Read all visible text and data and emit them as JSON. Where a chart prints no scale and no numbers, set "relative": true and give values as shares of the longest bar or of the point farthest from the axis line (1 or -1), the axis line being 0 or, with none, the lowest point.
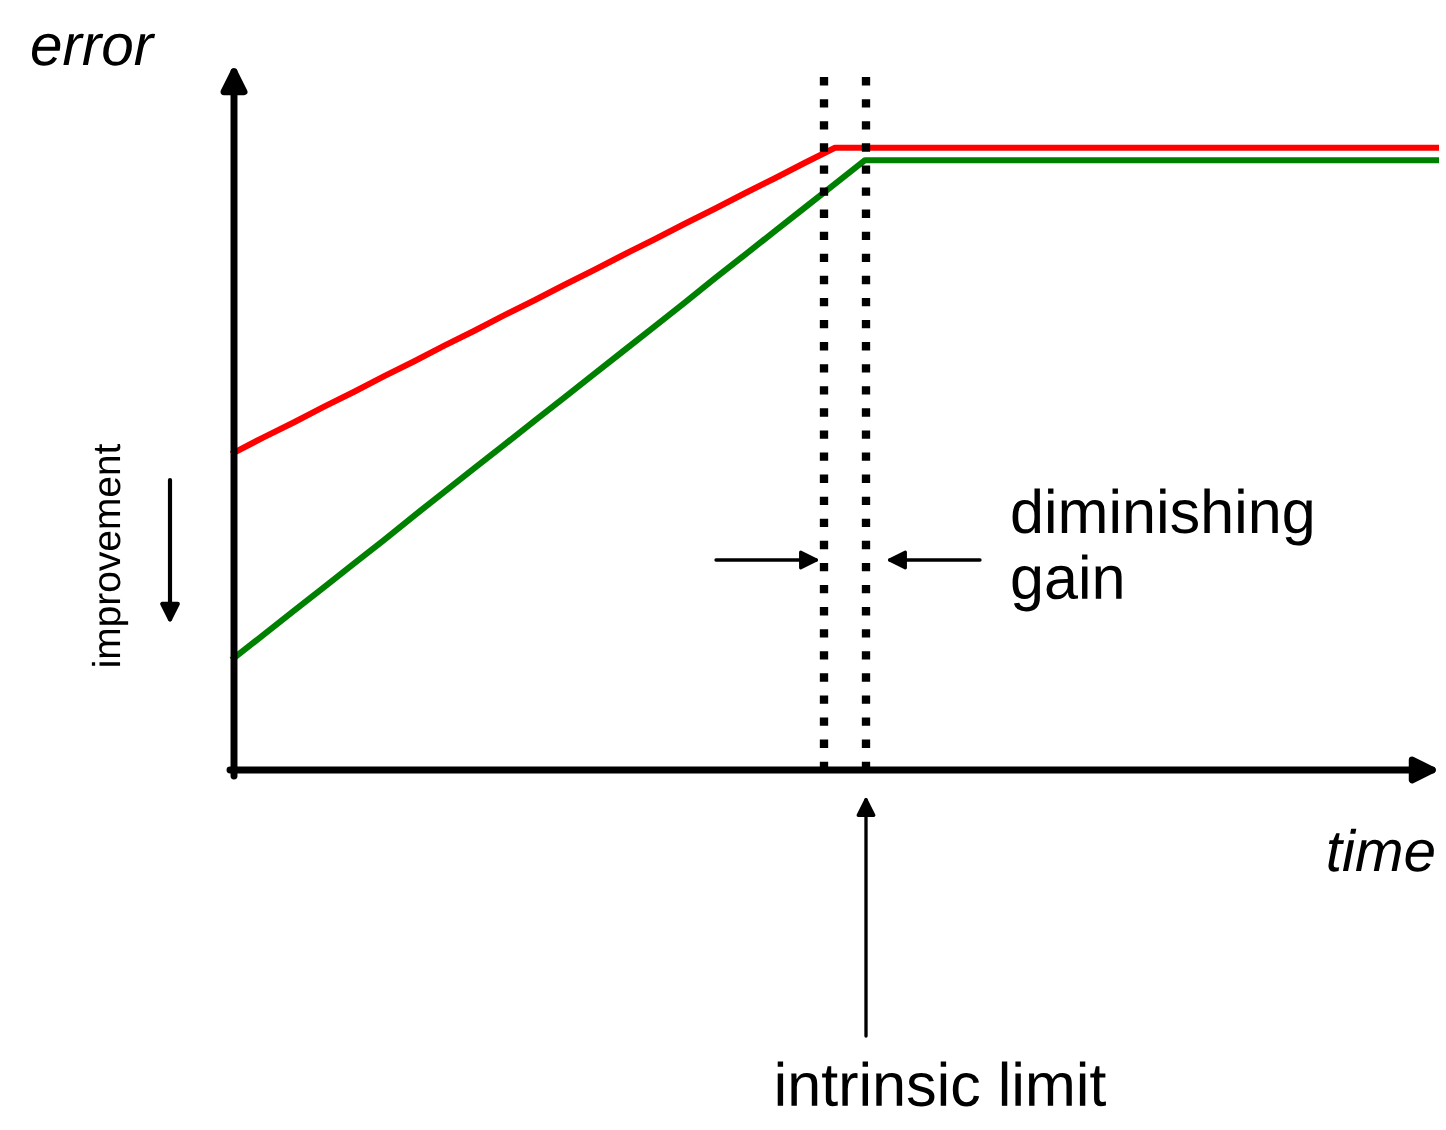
{
  "chart_data": {
    "type": "line",
    "relative": true,
    "xlabel": "time",
    "ylabel": "error",
    "categories": [
      null,
      null,
      null,
      null,
      null,
      null,
      null,
      null,
      null,
      null,
      null,
      null,
      null,
      null,
      null,
      null,
      null,
      null,
      null,
      null,
      null,
      null,
      null,
      null,
      null,
      null,
      null,
      null,
      null,
      null,
      null,
      null,
      null,
      null,
      null,
      null,
      null,
      null,
      null,
      null,
      null
    ],
    "series": [
      {
        "color": "#ff0000",
        "values": [
          0.51,
          0.535,
          0.559,
          0.584,
          0.608,
          0.633,
          0.657,
          0.682,
          0.706,
          0.731,
          0.755,
          0.78,
          0.804,
          0.829,
          0.853,
          0.878,
          0.902,
          0.927,
          0.951,
          0.976,
          1.0,
          1.0,
          1.0,
          1.0,
          1.0,
          1.0,
          1.0,
          1.0,
          1.0,
          1.0,
          1.0,
          1.0,
          1.0,
          1.0,
          1.0,
          1.0,
          1.0,
          1.0,
          1.0,
          1.0,
          1.0
        ]
      },
      {
        "color": "#008000",
        "values": [
          0.18,
          0.218,
          0.256,
          0.294,
          0.332,
          0.37,
          0.409,
          0.447,
          0.485,
          0.523,
          0.561,
          0.599,
          0.637,
          0.675,
          0.713,
          0.751,
          0.79,
          0.828,
          0.866,
          0.904,
          0.942,
          0.98,
          0.98,
          0.98,
          0.98,
          0.98,
          0.98,
          0.98,
          0.98,
          0.98,
          0.98,
          0.98,
          0.98,
          0.98,
          0.98,
          0.98,
          0.98,
          0.98,
          0.98,
          0.98,
          0.98
        ]
      }
    ],
    "annotations": [
      "diminishing\ngain",
      "intrinsic limit",
      "improvement"
    ]
  }
}
